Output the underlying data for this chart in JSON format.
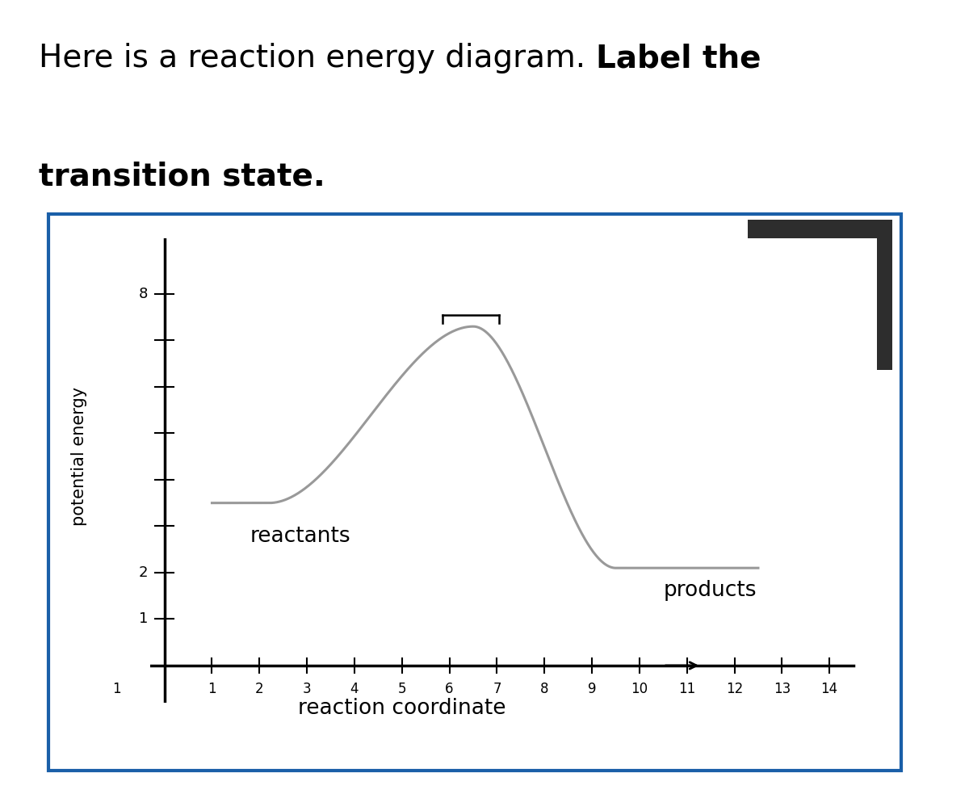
{
  "title_normal": "Here is a reaction energy diagram. ",
  "title_bold_line1": "Label the",
  "title_bold_line2": "transition state.",
  "title_fontsize": 28,
  "ylabel": "potential energy",
  "xlabel": "reaction coordinate",
  "xlabel_fontsize": 19,
  "ylabel_fontsize": 15,
  "curve_color": "#999999",
  "curve_linewidth": 2.2,
  "reactants_label": "reactants",
  "products_label": "products",
  "label_fontsize": 19,
  "reactant_y": 3.5,
  "peak_x": 6.5,
  "peak_y": 7.3,
  "product_y": 2.1,
  "reactant_plateau_start": 1.0,
  "reactant_plateau_end": 2.2,
  "rise_end": 6.5,
  "fall_end": 9.5,
  "product_plateau_end": 12.5,
  "xlim_left": -0.3,
  "xlim_right": 15.0,
  "ylim_bottom": -0.8,
  "ylim_top": 9.2,
  "ytick_label_vals": [
    1,
    2,
    8
  ],
  "background_color": "#ffffff",
  "border_color": "#1a5fa8",
  "dark_box_color": "#2d2d2d",
  "bracket_left_x": 5.85,
  "bracket_right_x": 7.05,
  "bracket_y": 7.55,
  "bracket_drop": 0.18
}
